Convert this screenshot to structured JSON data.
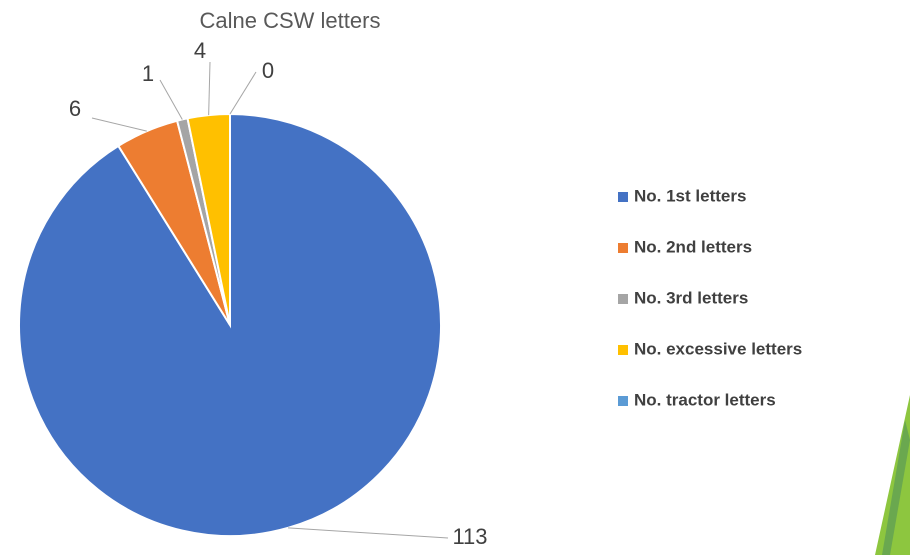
{
  "chart_data": {
    "type": "pie",
    "title": "Calne CSW letters",
    "categories": [
      "No. 1st letters",
      "No. 2nd letters",
      "No. 3rd letters",
      "No. excessive letters",
      "No. tractor letters"
    ],
    "values": [
      113,
      6,
      1,
      4,
      0
    ],
    "colors": [
      "#4472c4",
      "#ed7d31",
      "#a5a5a5",
      "#ffc000",
      "#5b9bd5"
    ],
    "legend": "right"
  }
}
